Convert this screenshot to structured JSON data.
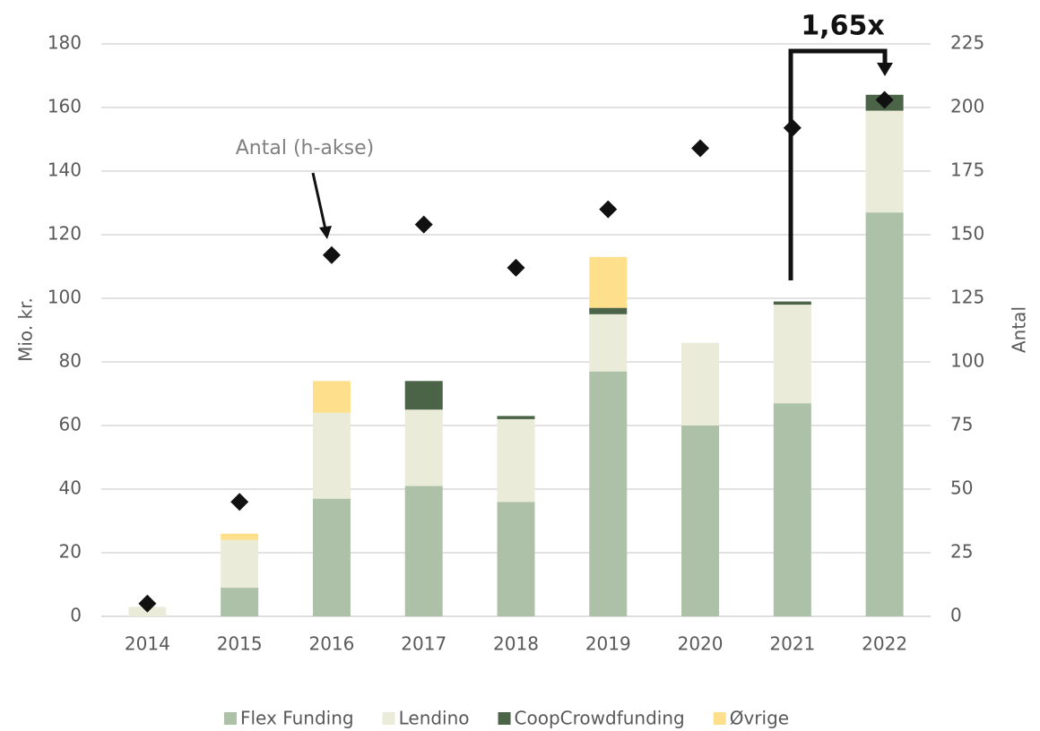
{
  "chart_data": {
    "type": "bar",
    "stacked": true,
    "categories": [
      "2014",
      "2015",
      "2016",
      "2017",
      "2018",
      "2019",
      "2020",
      "2021",
      "2022"
    ],
    "series": [
      {
        "name": "Flex Funding",
        "color": "#adc1a9",
        "values": [
          0,
          9,
          37,
          41,
          36,
          77,
          60,
          67,
          127
        ]
      },
      {
        "name": "Lendino",
        "color": "#ebebd9",
        "values": [
          3,
          15,
          27,
          24,
          26,
          18,
          26,
          31,
          32
        ]
      },
      {
        "name": "CoopCrowdfunding",
        "color": "#4b6346",
        "values": [
          0,
          0,
          0,
          9,
          1,
          2,
          0,
          1,
          5
        ]
      },
      {
        "name": "Øvrige",
        "color": "#fedf8b",
        "values": [
          0,
          2,
          10,
          0,
          0,
          16,
          0,
          0,
          0
        ]
      },
      {
        "type": "scatter",
        "axis": "y2",
        "color": "#111111",
        "values": [
          5,
          45,
          142,
          154,
          137,
          160,
          184,
          192,
          203
        ]
      }
    ],
    "ylabel": "Mio. kr.",
    "y2label": "Antal",
    "ylim": [
      0,
      180
    ],
    "yticks": [
      0,
      20,
      40,
      60,
      80,
      100,
      120,
      140,
      160,
      180
    ],
    "y2lim": [
      0,
      225
    ],
    "y2ticks": [
      0,
      25,
      50,
      75,
      100,
      125,
      150,
      175,
      200,
      225
    ],
    "grid": true,
    "legend": "bottom",
    "annotations": [
      {
        "text": "Antal (h-akse)"
      },
      {
        "text": "1,65x"
      }
    ]
  }
}
